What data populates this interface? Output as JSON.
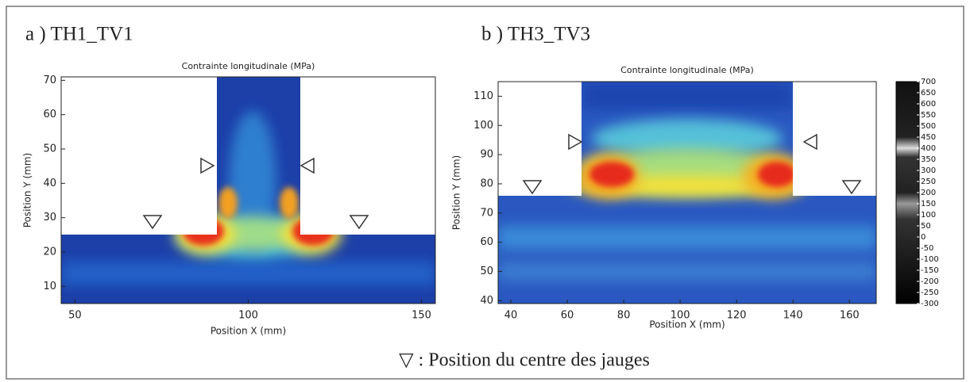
{
  "chart_data": [
    {
      "type": "heatmap",
      "panel_title": "a ) TH1_TV1",
      "title": "Contrainte longitudinale (MPa)",
      "x_label": "Position X (mm)",
      "y_label": "Position Y (mm)",
      "xlim": [
        46,
        154
      ],
      "ylim": [
        5,
        71
      ],
      "xticks": [
        50,
        100,
        150
      ],
      "yticks": [
        10,
        20,
        30,
        40,
        50,
        60,
        70
      ]
    },
    {
      "type": "heatmap",
      "panel_title": "b ) TH3_TV3",
      "title": "Contrainte longitudinale (MPa)",
      "x_label": "Position X (mm)",
      "y_label": "Position Y (mm)",
      "xlim": [
        35.5,
        169.5
      ],
      "ylim": [
        39,
        115
      ],
      "xticks": [
        40,
        60,
        80,
        100,
        120,
        140,
        160
      ],
      "yticks": [
        40,
        50,
        60,
        70,
        80,
        90,
        100,
        110
      ],
      "colorbar": {
        "lim": [
          -300,
          700
        ],
        "ticks": [
          700,
          650,
          600,
          550,
          500,
          450,
          400,
          350,
          300,
          250,
          200,
          150,
          100,
          50,
          0,
          -50,
          -100,
          -150,
          -200,
          -250,
          -300
        ]
      }
    }
  ],
  "caption": "▽ : Position du centre des jauges"
}
